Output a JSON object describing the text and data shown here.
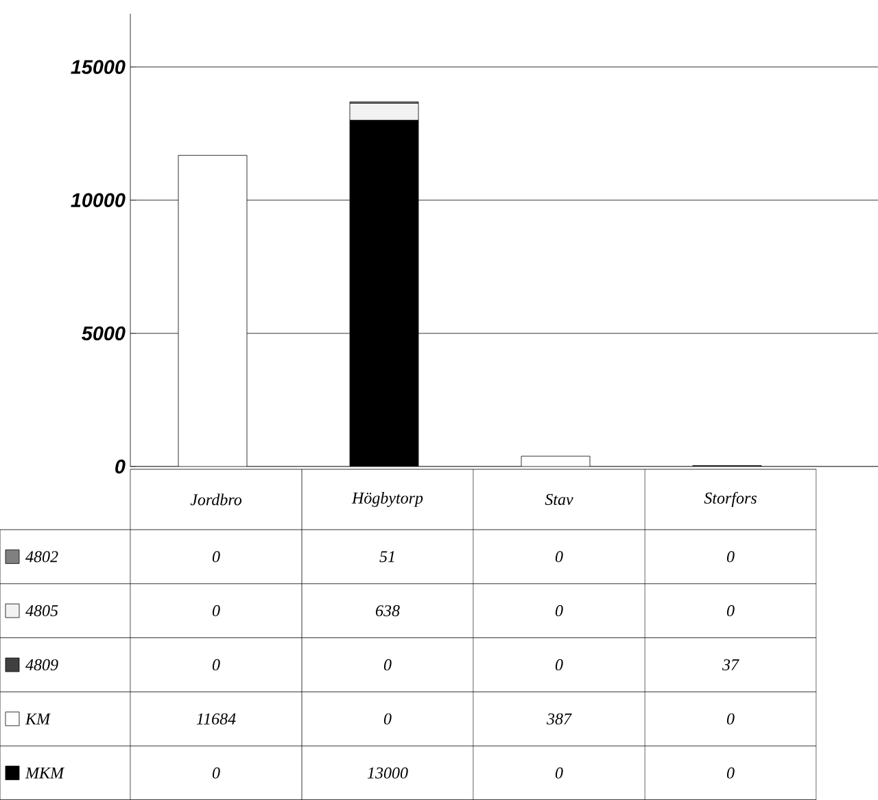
{
  "chart_data": {
    "type": "bar",
    "stacked": true,
    "categories": [
      "Jordbro",
      "Högbytorp",
      "Stav",
      "Storfors"
    ],
    "series": [
      {
        "name": "MKM",
        "color": "#000000",
        "values": [
          0,
          13000,
          0,
          0
        ]
      },
      {
        "name": "KM",
        "color": "#ffffff",
        "values": [
          11684,
          0,
          387,
          0
        ]
      },
      {
        "name": "4809",
        "color": "#404040",
        "values": [
          0,
          0,
          0,
          37
        ]
      },
      {
        "name": "4805",
        "color": "#f2f2f2",
        "values": [
          0,
          638,
          0,
          0
        ]
      },
      {
        "name": "4802",
        "color": "#808080",
        "values": [
          0,
          51,
          0,
          0
        ]
      }
    ],
    "ylim": [
      0,
      17000
    ],
    "yticks": [
      0,
      5000,
      10000,
      15000
    ],
    "grid": "y",
    "data_labels": true,
    "legend": "bottom left"
  }
}
